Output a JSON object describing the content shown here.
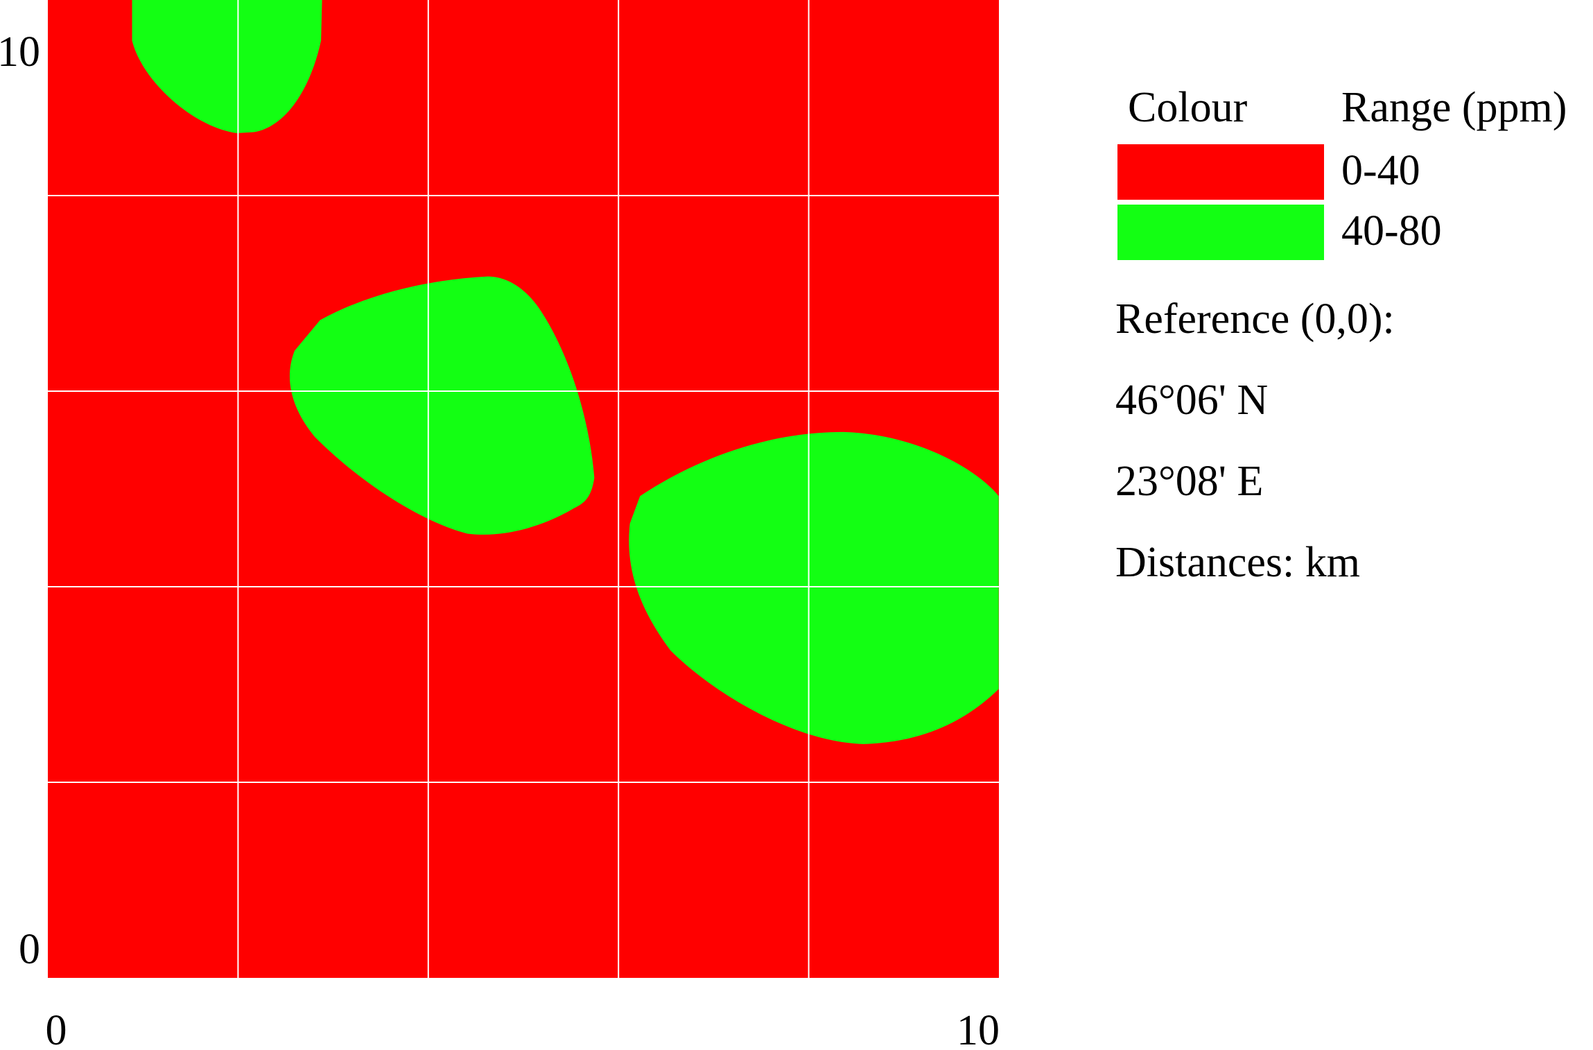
{
  "map": {
    "xlim": [
      0,
      10
    ],
    "ylim": [
      0,
      10
    ],
    "xticks": [
      0,
      10
    ],
    "yticks": [
      0,
      10
    ],
    "background": "#ff0000",
    "region_color": "#13ff13",
    "legend": {
      "headers": [
        "Colour",
        "Range (ppm)"
      ],
      "entries": [
        {
          "color": "#ff0000",
          "range": "0-40"
        },
        {
          "color": "#13ff13",
          "range": "40-80"
        }
      ]
    },
    "notes": [
      "Reference (0,0):",
      "46°06' N",
      "23°08' E",
      "Distances: km"
    ]
  }
}
